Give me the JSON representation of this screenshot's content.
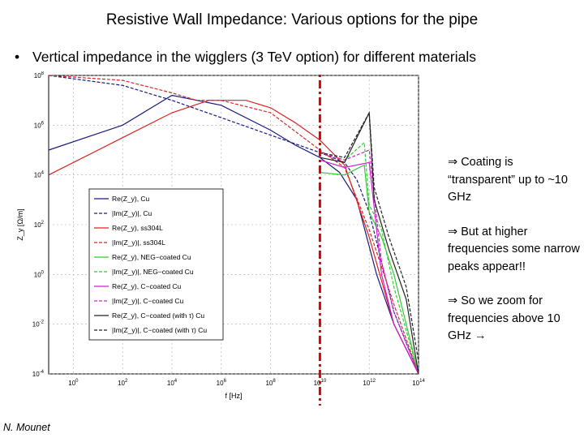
{
  "slide": {
    "title": "Resistive Wall Impedance: Various options for the pipe",
    "bullet": "Vertical impedance in the wigglers (3 TeV option) for different materials",
    "author": "N. Mounet"
  },
  "notes": [
    {
      "arrow_glyph": "⇒",
      "text": "Coating is “transparent” up to ~10 GHz"
    },
    {
      "arrow_glyph": "⇒",
      "text": "But at higher frequencies some narrow peaks appear!!"
    },
    {
      "arrow_glyph": "⇒",
      "text": "So we zoom for frequencies above 10 GHz",
      "trailing_icon": "right-arrow-icon",
      "trailing_glyph": "→"
    }
  ],
  "colors": {
    "cu": "#1a1a80",
    "ss304l": "#dd2222",
    "neg": "#33cc33",
    "c_coated": "#cc22cc",
    "c_coated_tau": "#222222",
    "marker_line": "#dd0000"
  },
  "chart_data": {
    "type": "line",
    "log_x": true,
    "log_y": true,
    "xlabel": "f [Hz]",
    "ylabel": "Z_y [Ω/m]",
    "x_ticks": [
      "10^0",
      "10^2",
      "10^4",
      "10^6",
      "10^8",
      "10^10",
      "10^12",
      "10^14"
    ],
    "x_tick_exponents": [
      0,
      2,
      4,
      6,
      8,
      10,
      12,
      14
    ],
    "y_ticks": [
      "10^8",
      "10^6",
      "10^4",
      "10^2",
      "10^0",
      "10^-2",
      "10^-4"
    ],
    "y_tick_exponents": [
      8,
      6,
      4,
      2,
      0,
      -2,
      -4
    ],
    "xlim_exp": [
      -1,
      14
    ],
    "ylim_exp": [
      -4,
      8
    ],
    "grid": true,
    "legend_position": "center-left",
    "legend": [
      {
        "label": "Re(Z_y), Cu",
        "color_key": "cu",
        "dash": "solid"
      },
      {
        "label": "|Im(Z_y)|, Cu",
        "color_key": "cu",
        "dash": "dashed"
      },
      {
        "label": "Re(Z_y), ss304L",
        "color_key": "ss304l",
        "dash": "solid"
      },
      {
        "label": "|Im(Z_y)|, ss304L",
        "color_key": "ss304l",
        "dash": "dashed"
      },
      {
        "label": "Re(Z_y), NEG−coated Cu",
        "color_key": "neg",
        "dash": "solid"
      },
      {
        "label": "|Im(Z_y)|, NEG−coated Cu",
        "color_key": "neg",
        "dash": "dashed"
      },
      {
        "label": "Re(Z_y), C−coated Cu",
        "color_key": "c_coated",
        "dash": "solid"
      },
      {
        "label": "|Im(Z_y)|, C−coated Cu",
        "color_key": "c_coated",
        "dash": "dashed"
      },
      {
        "label": "Re(Z_y), C−coated (with τ) Cu",
        "color_key": "c_coated_tau",
        "dash": "solid"
      },
      {
        "label": "|Im(Z_y)|, C−coated (with τ) Cu",
        "color_key": "c_coated_tau",
        "dash": "dashed"
      }
    ],
    "marker_line_exp": 10,
    "series": [
      {
        "color_key": "cu",
        "dash": "solid",
        "points": [
          [
            -1,
            5
          ],
          [
            2,
            6
          ],
          [
            4,
            7.2
          ],
          [
            6,
            6.8
          ],
          [
            8,
            5.8
          ],
          [
            9,
            5.2
          ],
          [
            10,
            4.7
          ],
          [
            10.8,
            4.1
          ],
          [
            11.5,
            3
          ],
          [
            12.3,
            0
          ],
          [
            13,
            -2
          ],
          [
            14,
            -4
          ]
        ]
      },
      {
        "color_key": "cu",
        "dash": "dashed",
        "points": [
          [
            -1,
            8
          ],
          [
            2,
            7.6
          ],
          [
            4,
            7
          ],
          [
            6,
            6.3
          ],
          [
            8,
            5.6
          ],
          [
            10,
            4.9
          ],
          [
            11,
            4.5
          ],
          [
            11.5,
            3.8
          ],
          [
            12,
            2.5
          ],
          [
            12.5,
            0.5
          ],
          [
            13,
            -1.5
          ],
          [
            14,
            -4
          ]
        ]
      },
      {
        "color_key": "ss304l",
        "dash": "solid",
        "points": [
          [
            -1,
            4
          ],
          [
            2,
            5.5
          ],
          [
            4,
            6.5
          ],
          [
            5.5,
            7
          ],
          [
            7,
            7
          ],
          [
            8,
            6.7
          ],
          [
            9,
            6.1
          ],
          [
            10,
            5.4
          ],
          [
            11,
            4.4
          ],
          [
            12,
            1.5
          ],
          [
            13,
            -2
          ],
          [
            14,
            -4
          ]
        ]
      },
      {
        "color_key": "ss304l",
        "dash": "dashed",
        "points": [
          [
            -1,
            8
          ],
          [
            2,
            7.8
          ],
          [
            4,
            7.3
          ],
          [
            5,
            7
          ],
          [
            6,
            7
          ],
          [
            8,
            6.5
          ],
          [
            10,
            5
          ],
          [
            11,
            4.3
          ],
          [
            12,
            1.8
          ],
          [
            13,
            -1.2
          ],
          [
            14,
            -4
          ]
        ]
      },
      {
        "color_key": "neg",
        "dash": "solid",
        "points": [
          [
            10,
            4.1
          ],
          [
            11,
            4.0
          ],
          [
            11.8,
            4.4
          ],
          [
            12,
            2.5
          ],
          [
            12.5,
            1.5
          ],
          [
            13,
            0
          ],
          [
            14,
            -4
          ]
        ]
      },
      {
        "color_key": "neg",
        "dash": "dashed",
        "points": [
          [
            10,
            4.9
          ],
          [
            11,
            4.6
          ],
          [
            11.8,
            5.3
          ],
          [
            12,
            2.8
          ],
          [
            12.5,
            1.8
          ],
          [
            13,
            -0.5
          ],
          [
            14,
            -4
          ]
        ]
      },
      {
        "color_key": "c_coated",
        "dash": "solid",
        "points": [
          [
            10,
            4.6
          ],
          [
            11,
            4.3
          ],
          [
            12,
            4.5
          ],
          [
            12.5,
            0
          ],
          [
            13,
            -2
          ],
          [
            14,
            -4
          ]
        ]
      },
      {
        "color_key": "c_coated",
        "dash": "dashed",
        "points": [
          [
            10,
            4.9
          ],
          [
            11,
            4.6
          ],
          [
            12,
            5.0
          ],
          [
            12.5,
            0.5
          ],
          [
            13,
            -1.5
          ],
          [
            14,
            -4
          ]
        ]
      },
      {
        "color_key": "c_coated_tau",
        "dash": "solid",
        "points": [
          [
            10,
            4.7
          ],
          [
            11,
            4.5
          ],
          [
            12,
            6.5
          ],
          [
            12.2,
            3
          ],
          [
            12.8,
            1
          ],
          [
            13.5,
            -1
          ],
          [
            14,
            -4
          ]
        ]
      },
      {
        "color_key": "c_coated_tau",
        "dash": "dashed",
        "points": [
          [
            10,
            4.9
          ],
          [
            11,
            4.7
          ],
          [
            12,
            6.5
          ],
          [
            12.2,
            3.5
          ],
          [
            12.8,
            1.5
          ],
          [
            13.5,
            -0.5
          ],
          [
            14,
            -3.5
          ]
        ]
      }
    ]
  }
}
